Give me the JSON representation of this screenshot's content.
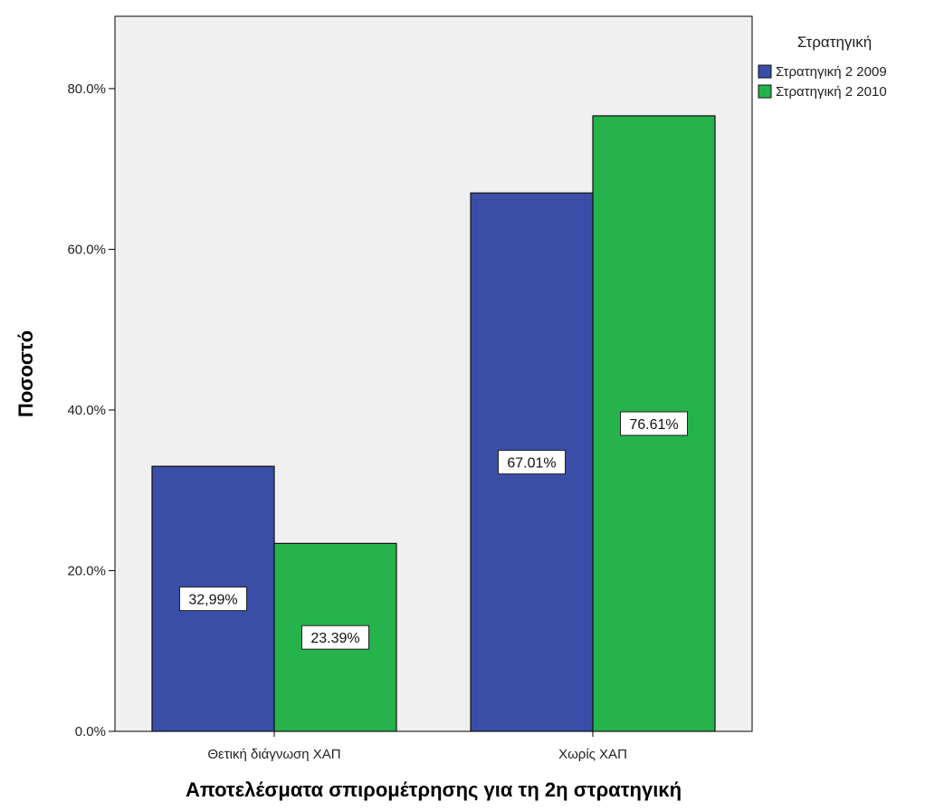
{
  "chart_data": {
    "type": "bar",
    "xlabel": "Αποτελέσματα σπιρομέτρησης για τη 2η στρατηγική",
    "ylabel": "Ποσοστό",
    "categories": [
      "Θετική διάγνωση ΧΑΠ",
      "Χωρίς ΧΑΠ"
    ],
    "series": [
      {
        "name": "Στρατηγική 2 2009",
        "values": [
          32.99,
          67.01
        ],
        "labels": [
          "32,99%",
          "67.01%"
        ],
        "color": "#3a4ea8"
      },
      {
        "name": "Στρατηγική 2 2010",
        "values": [
          23.39,
          76.61
        ],
        "labels": [
          "23.39%",
          "76.61%"
        ],
        "color": "#27b34c"
      }
    ],
    "yticks": [
      0,
      20,
      40,
      60,
      80
    ],
    "ytick_labels": [
      "0.0%",
      "20.0%",
      "40.0%",
      "60.0%",
      "80.0%"
    ],
    "ylim": [
      0,
      89
    ],
    "legend": {
      "title": "Στρατηγική",
      "position": "top-right"
    },
    "grid": false,
    "plot_background": "#f0f0f0"
  }
}
